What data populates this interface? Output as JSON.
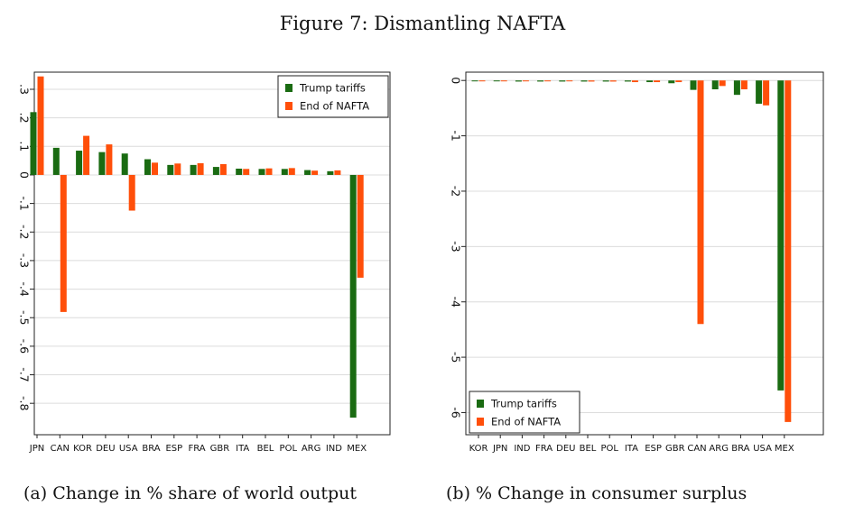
{
  "figure": {
    "title": "Figure 7: Dismantling NAFTA",
    "caption_a": "(a) Change in % share of world output",
    "caption_b": "(b) % Change in consumer surplus"
  },
  "colors": {
    "trump": "#1a6b12",
    "nafta": "#ff4f0a",
    "grid": "#dcdcdc",
    "axis": "#222222"
  },
  "chart_data": [
    {
      "type": "bar",
      "title": "",
      "xlabel": "",
      "ylabel": "",
      "categories": [
        "JPN",
        "CAN",
        "KOR",
        "DEU",
        "USA",
        "BRA",
        "ESP",
        "FRA",
        "GBR",
        "ITA",
        "BEL",
        "POL",
        "ARG",
        "IND",
        "MEX"
      ],
      "series": [
        {
          "name": "Trump tariffs",
          "values": [
            0.22,
            0.095,
            0.085,
            0.08,
            0.075,
            0.055,
            0.035,
            0.035,
            0.028,
            0.022,
            0.021,
            0.021,
            0.017,
            0.013,
            -0.85
          ]
        },
        {
          "name": "End of NAFTA",
          "values": [
            0.345,
            -0.48,
            0.137,
            0.107,
            -0.125,
            0.043,
            0.04,
            0.041,
            0.038,
            0.021,
            0.023,
            0.024,
            0.015,
            0.016,
            -0.36
          ]
        }
      ],
      "ylim": [
        -0.91,
        0.36
      ],
      "yticks": [
        0.3,
        0.2,
        0.1,
        0,
        -0.1,
        -0.2,
        -0.3,
        -0.4,
        -0.5,
        -0.6,
        -0.7,
        -0.8
      ],
      "ytick_labels": [
        ".3",
        ".2",
        ".1",
        "0",
        "-.1",
        "-.2",
        "-.3",
        "-.4",
        "-.5",
        "-.6",
        "-.7",
        "-.8"
      ],
      "grid": true,
      "legend": "top-right"
    },
    {
      "type": "bar",
      "title": "",
      "xlabel": "",
      "ylabel": "",
      "categories": [
        "KOR",
        "JPN",
        "IND",
        "FRA",
        "DEU",
        "BEL",
        "POL",
        "ITA",
        "ESP",
        "GBR",
        "CAN",
        "ARG",
        "BRA",
        "USA",
        "MEX"
      ],
      "series": [
        {
          "name": "Trump tariffs",
          "values": [
            0,
            0,
            -0.02,
            -0.02,
            -0.02,
            -0.02,
            -0.02,
            -0.02,
            -0.03,
            -0.05,
            -0.17,
            -0.16,
            -0.26,
            -0.42,
            -5.6
          ]
        },
        {
          "name": "End of NAFTA",
          "values": [
            0,
            0,
            -0.01,
            -0.01,
            -0.01,
            -0.02,
            -0.02,
            -0.03,
            -0.03,
            -0.03,
            -4.4,
            -0.1,
            -0.16,
            -0.45,
            -6.17
          ]
        }
      ],
      "ylim": [
        -6.4,
        0.15
      ],
      "yticks": [
        0,
        -1,
        -2,
        -3,
        -4,
        -5,
        -6
      ],
      "ytick_labels": [
        "0",
        "-1",
        "-2",
        "-3",
        "-4",
        "-5",
        "-6"
      ],
      "grid": true,
      "legend": "bottom-left"
    }
  ]
}
